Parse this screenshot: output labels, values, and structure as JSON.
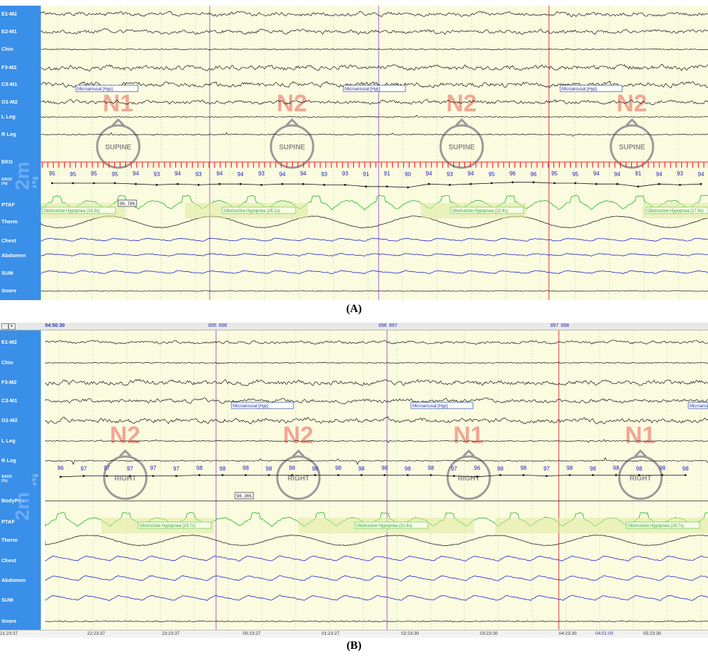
{
  "captions": {
    "panel_a": "(A)",
    "panel_b": "(B)"
  },
  "scale_text": "2m",
  "panel_a": {
    "channels": [
      "E1-M2",
      "E2-M1",
      "Chin",
      "F3-M2",
      "C3-M1",
      "O1-M2",
      "L Leg",
      "R Leg",
      "EKG",
      "SAO2\n(%)",
      "PTAF",
      "Therm",
      "Chest",
      "Abdomen",
      "SUM",
      "Snore"
    ],
    "sao2_scale": [
      "100",
      "87",
      "75"
    ],
    "stages": [
      "N1",
      "N2",
      "N2",
      "N2"
    ],
    "positions": [
      "SUPINE",
      "SUPINE",
      "SUPINE",
      "SUPINE"
    ],
    "microarousal": "Microarousal [Hyp]",
    "hypopneas": [
      "Obstructive Hypopnea (18.3s)",
      "Obstructive Hypopnea (26.1s)",
      "Obstructive Hypopnea (22.4s)",
      "Obstructive Hypopnea (27.9s)"
    ],
    "sat_box": "96.76%",
    "spo2_values": [
      "95",
      "95",
      "95",
      "95",
      "94",
      "93",
      "94",
      "93",
      "94",
      "94",
      "93",
      "94",
      "94",
      "93",
      "93",
      "91",
      "91",
      "90",
      "94",
      "93",
      "94",
      "95",
      "96",
      "96",
      "95",
      "95",
      "94",
      "94",
      "91",
      "94",
      "93",
      "94"
    ]
  },
  "panel_b": {
    "toolbar": {
      "time": "04:50:30",
      "epochs": [
        "895",
        "896",
        "896",
        "897",
        "897",
        "898"
      ]
    },
    "channels": [
      "E1-M2",
      "Chin",
      "F3-M2",
      "C3-M1",
      "O1-M2",
      "L Leg",
      "R Leg",
      "SAO2\n(%)",
      "BodyPos",
      "PTAF",
      "Therm",
      "Chest",
      "Abdomen",
      "SUM",
      "Snore"
    ],
    "sao2_scale": [
      "100",
      "87",
      "75"
    ],
    "stages": [
      "N2",
      "N2",
      "N1",
      "N1"
    ],
    "positions": [
      "RIGHT",
      "RIGHT",
      "RIGHT",
      "RIGHT"
    ],
    "microarousal": "Microarousal [Hyp]",
    "microarousal_cut": "Microarou",
    "hypopneas": [
      "Obstructive Hypopnea (23.7s)",
      "Obstructive Hypopnea (31.6s)",
      "Obstructive Hypopnea (29.7s)"
    ],
    "sat_box": "98.36%",
    "spo2_values": [
      "96",
      "97",
      "97",
      "97",
      "97",
      "97",
      "98",
      "98",
      "98",
      "98",
      "98",
      "98",
      "98",
      "98",
      "98",
      "98",
      "98",
      "97",
      "96",
      "98",
      "98",
      "97",
      "98",
      "98",
      "98",
      "98",
      "98",
      "98"
    ],
    "time_axis": [
      "21:23:37",
      "22:23:37",
      "23:23:37",
      "00:23:27",
      "01:23:27",
      "02:23:30",
      "03:23:30",
      "04:23:30",
      "04:51:00",
      "05:23:30"
    ]
  },
  "colors": {
    "label_bg": "#3a8fe8",
    "plot_bg": "#fbfbe0",
    "eeg": "#111111",
    "resp_green": "#2fbf2f",
    "resp_blue": "#2222cc",
    "stage_red": "#f08a7a",
    "ekg_red": "#ff2222",
    "spo2_blue": "#2020c0"
  }
}
